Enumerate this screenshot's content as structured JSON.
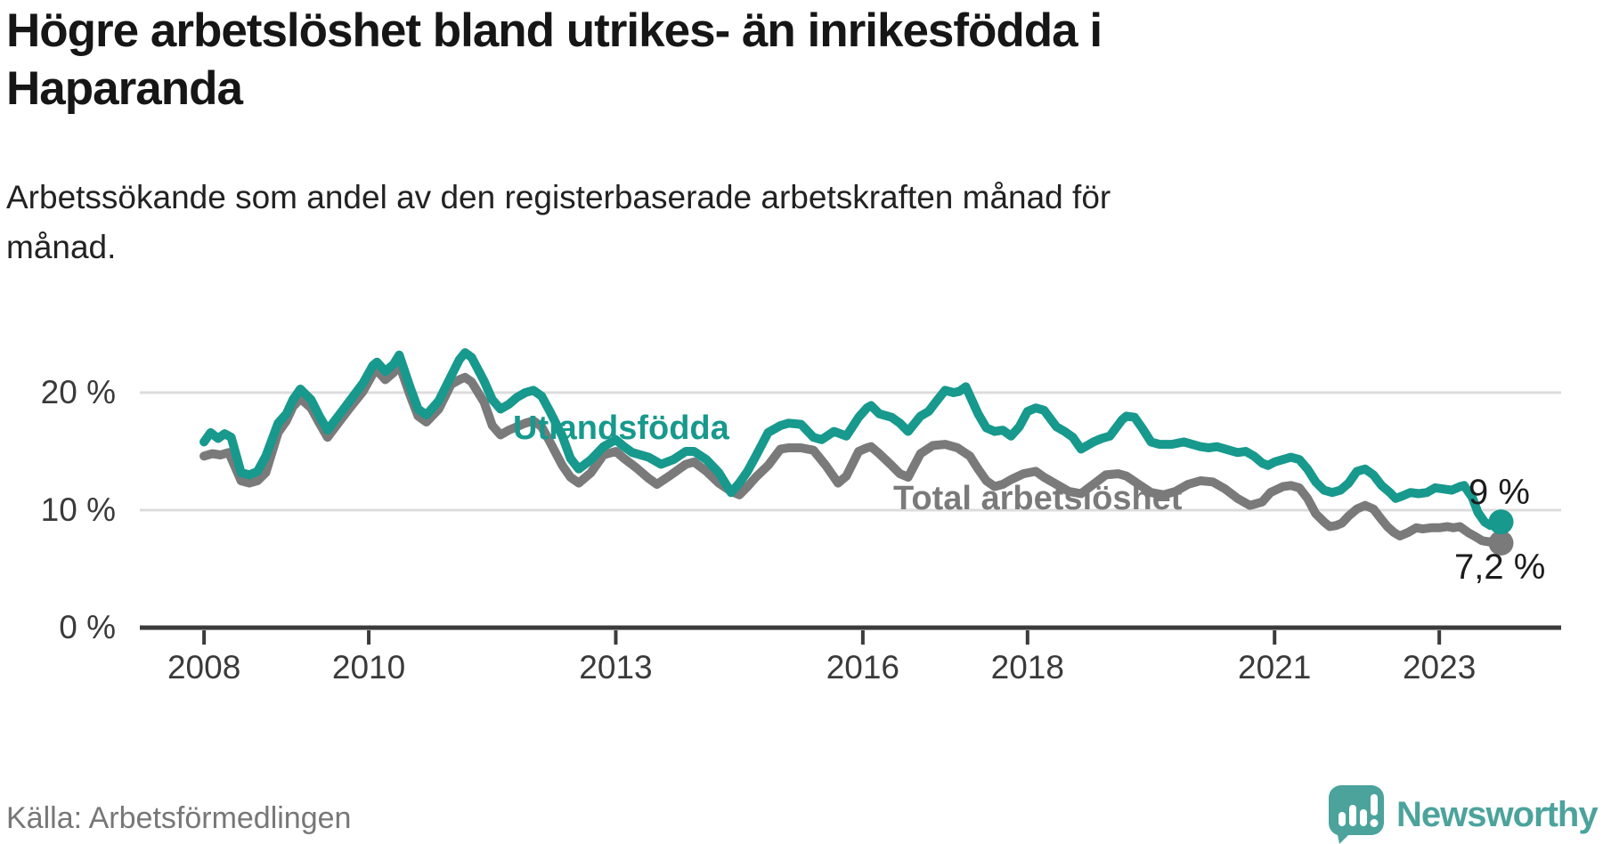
{
  "header": {
    "title": "Högre arbetslöshet bland utrikes- än inrikesfödda i\nHaparanda",
    "subtitle": "Arbetssökande som andel av den registerbaserade arbetskraften månad för\nmånad."
  },
  "footer": {
    "source": "Källa: Arbetsförmedlingen",
    "brand": "Newsworthy"
  },
  "colors": {
    "teal_line": "#17998d",
    "gray_line": "#7a7a7a",
    "logo_teal": "#4BA39C",
    "grid": "#dcdcdc",
    "axis": "#3b3b3b",
    "title_text": "#161616",
    "tick_text": "#3a3a3a",
    "source_text": "#777777"
  },
  "chart_data": {
    "type": "line",
    "title": "Högre arbetslöshet bland utrikes- än inrikesfödda i Haparanda",
    "xlabel": "",
    "ylabel": "Arbetssökande som andel av den registerbaserade arbetskraften",
    "unit": "%",
    "grid": "horizontal",
    "legend_position": "inline-labels",
    "xlim": [
      2007.22,
      2024.48
    ],
    "ylim": [
      0,
      28
    ],
    "x_ticks": [
      2008,
      2010,
      2013,
      2016,
      2018,
      2021,
      2023
    ],
    "x_tick_labels": [
      "2008",
      "2010",
      "2013",
      "2016",
      "2018",
      "2021",
      "2023"
    ],
    "y_ticks": [
      0,
      10,
      20
    ],
    "y_tick_labels": [
      "0 %",
      "10 %",
      "20 %"
    ],
    "series": [
      {
        "name": "Utlandsfödda",
        "color": "#17998d",
        "end_label": "9 %",
        "end_value": 9.0,
        "points": [
          [
            2008.0,
            15.8
          ],
          [
            2008.08,
            16.6
          ],
          [
            2008.17,
            16.1
          ],
          [
            2008.25,
            16.5
          ],
          [
            2008.33,
            16.2
          ],
          [
            2008.45,
            13.2
          ],
          [
            2008.55,
            13.0
          ],
          [
            2008.65,
            13.3
          ],
          [
            2008.75,
            14.6
          ],
          [
            2008.9,
            17.4
          ],
          [
            2009.0,
            18.2
          ],
          [
            2009.08,
            19.4
          ],
          [
            2009.17,
            20.3
          ],
          [
            2009.3,
            19.4
          ],
          [
            2009.4,
            18.0
          ],
          [
            2009.5,
            16.8
          ],
          [
            2009.63,
            18.0
          ],
          [
            2009.77,
            19.3
          ],
          [
            2009.93,
            20.8
          ],
          [
            2010.05,
            22.3
          ],
          [
            2010.1,
            22.6
          ],
          [
            2010.2,
            21.8
          ],
          [
            2010.3,
            22.4
          ],
          [
            2010.37,
            23.2
          ],
          [
            2010.5,
            20.5
          ],
          [
            2010.6,
            18.6
          ],
          [
            2010.7,
            18.1
          ],
          [
            2010.85,
            19.3
          ],
          [
            2011.0,
            21.4
          ],
          [
            2011.1,
            22.8
          ],
          [
            2011.17,
            23.4
          ],
          [
            2011.25,
            23.0
          ],
          [
            2011.4,
            21.0
          ],
          [
            2011.5,
            19.4
          ],
          [
            2011.6,
            18.6
          ],
          [
            2011.7,
            19.0
          ],
          [
            2011.8,
            19.6
          ],
          [
            2011.9,
            20.0
          ],
          [
            2012.0,
            20.2
          ],
          [
            2012.1,
            19.7
          ],
          [
            2012.2,
            18.4
          ],
          [
            2012.35,
            16.3
          ],
          [
            2012.45,
            14.4
          ],
          [
            2012.55,
            13.5
          ],
          [
            2012.7,
            14.3
          ],
          [
            2012.85,
            15.4
          ],
          [
            2013.0,
            16.0
          ],
          [
            2013.1,
            15.4
          ],
          [
            2013.2,
            14.9
          ],
          [
            2013.4,
            14.5
          ],
          [
            2013.55,
            13.9
          ],
          [
            2013.7,
            14.3
          ],
          [
            2013.85,
            15.0
          ],
          [
            2013.95,
            15.0
          ],
          [
            2014.1,
            14.3
          ],
          [
            2014.25,
            13.2
          ],
          [
            2014.4,
            11.5
          ],
          [
            2014.5,
            12.3
          ],
          [
            2014.6,
            13.3
          ],
          [
            2014.7,
            14.6
          ],
          [
            2014.85,
            16.6
          ],
          [
            2015.0,
            17.2
          ],
          [
            2015.1,
            17.4
          ],
          [
            2015.25,
            17.3
          ],
          [
            2015.4,
            16.2
          ],
          [
            2015.5,
            16.0
          ],
          [
            2015.65,
            16.7
          ],
          [
            2015.8,
            16.3
          ],
          [
            2015.95,
            17.9
          ],
          [
            2016.05,
            18.7
          ],
          [
            2016.1,
            18.9
          ],
          [
            2016.2,
            18.2
          ],
          [
            2016.35,
            17.9
          ],
          [
            2016.45,
            17.4
          ],
          [
            2016.55,
            16.7
          ],
          [
            2016.7,
            18.0
          ],
          [
            2016.8,
            18.4
          ],
          [
            2016.92,
            19.5
          ],
          [
            2017.0,
            20.2
          ],
          [
            2017.1,
            20.0
          ],
          [
            2017.17,
            20.1
          ],
          [
            2017.25,
            20.5
          ],
          [
            2017.4,
            18.2
          ],
          [
            2017.5,
            17.0
          ],
          [
            2017.6,
            16.7
          ],
          [
            2017.7,
            16.8
          ],
          [
            2017.8,
            16.3
          ],
          [
            2017.9,
            17.1
          ],
          [
            2018.0,
            18.4
          ],
          [
            2018.1,
            18.7
          ],
          [
            2018.2,
            18.5
          ],
          [
            2018.35,
            17.1
          ],
          [
            2018.45,
            16.7
          ],
          [
            2018.55,
            16.2
          ],
          [
            2018.65,
            15.2
          ],
          [
            2018.8,
            15.8
          ],
          [
            2018.9,
            16.1
          ],
          [
            2019.0,
            16.3
          ],
          [
            2019.15,
            17.7
          ],
          [
            2019.2,
            18.0
          ],
          [
            2019.3,
            17.9
          ],
          [
            2019.4,
            16.9
          ],
          [
            2019.5,
            15.8
          ],
          [
            2019.6,
            15.6
          ],
          [
            2019.75,
            15.6
          ],
          [
            2019.9,
            15.8
          ],
          [
            2020.0,
            15.6
          ],
          [
            2020.1,
            15.4
          ],
          [
            2020.2,
            15.3
          ],
          [
            2020.3,
            15.4
          ],
          [
            2020.45,
            15.1
          ],
          [
            2020.55,
            14.9
          ],
          [
            2020.65,
            15.0
          ],
          [
            2020.75,
            14.6
          ],
          [
            2020.85,
            14.0
          ],
          [
            2020.92,
            13.8
          ],
          [
            2021.0,
            14.1
          ],
          [
            2021.1,
            14.3
          ],
          [
            2021.2,
            14.5
          ],
          [
            2021.3,
            14.3
          ],
          [
            2021.4,
            13.5
          ],
          [
            2021.5,
            12.4
          ],
          [
            2021.6,
            11.7
          ],
          [
            2021.7,
            11.5
          ],
          [
            2021.8,
            11.7
          ],
          [
            2021.9,
            12.3
          ],
          [
            2022.0,
            13.3
          ],
          [
            2022.1,
            13.5
          ],
          [
            2022.2,
            13.0
          ],
          [
            2022.3,
            12.1
          ],
          [
            2022.4,
            11.5
          ],
          [
            2022.47,
            11.0
          ],
          [
            2022.55,
            11.2
          ],
          [
            2022.65,
            11.5
          ],
          [
            2022.75,
            11.4
          ],
          [
            2022.85,
            11.5
          ],
          [
            2022.95,
            11.9
          ],
          [
            2023.05,
            11.8
          ],
          [
            2023.15,
            11.7
          ],
          [
            2023.25,
            12.0
          ],
          [
            2023.3,
            12.1
          ],
          [
            2023.4,
            11.1
          ],
          [
            2023.47,
            9.8
          ],
          [
            2023.55,
            9.0
          ],
          [
            2023.62,
            8.7
          ],
          [
            2023.7,
            8.9
          ],
          [
            2023.75,
            9.0
          ]
        ]
      },
      {
        "name": "Total arbetslöshet",
        "color": "#7a7a7a",
        "end_label": "7,2 %",
        "end_value": 7.2,
        "points": [
          [
            2008.0,
            14.6
          ],
          [
            2008.1,
            14.8
          ],
          [
            2008.2,
            14.7
          ],
          [
            2008.3,
            14.9
          ],
          [
            2008.45,
            12.5
          ],
          [
            2008.55,
            12.3
          ],
          [
            2008.65,
            12.5
          ],
          [
            2008.75,
            13.2
          ],
          [
            2008.9,
            16.6
          ],
          [
            2009.0,
            17.6
          ],
          [
            2009.08,
            18.8
          ],
          [
            2009.17,
            19.5
          ],
          [
            2009.3,
            18.7
          ],
          [
            2009.4,
            17.4
          ],
          [
            2009.5,
            16.2
          ],
          [
            2009.63,
            17.4
          ],
          [
            2009.77,
            18.7
          ],
          [
            2009.93,
            20.1
          ],
          [
            2010.05,
            21.6
          ],
          [
            2010.1,
            21.9
          ],
          [
            2010.2,
            21.1
          ],
          [
            2010.3,
            21.7
          ],
          [
            2010.37,
            22.4
          ],
          [
            2010.5,
            19.8
          ],
          [
            2010.6,
            18.0
          ],
          [
            2010.7,
            17.5
          ],
          [
            2010.85,
            18.6
          ],
          [
            2011.0,
            20.7
          ],
          [
            2011.1,
            21.1
          ],
          [
            2011.17,
            21.3
          ],
          [
            2011.25,
            20.9
          ],
          [
            2011.4,
            19.2
          ],
          [
            2011.5,
            17.2
          ],
          [
            2011.6,
            16.4
          ],
          [
            2011.7,
            16.8
          ],
          [
            2011.8,
            17.1
          ],
          [
            2011.9,
            17.4
          ],
          [
            2012.0,
            17.6
          ],
          [
            2012.1,
            17.1
          ],
          [
            2012.2,
            15.8
          ],
          [
            2012.35,
            13.8
          ],
          [
            2012.45,
            12.8
          ],
          [
            2012.55,
            12.3
          ],
          [
            2012.7,
            13.2
          ],
          [
            2012.85,
            14.7
          ],
          [
            2013.0,
            15.0
          ],
          [
            2013.1,
            14.4
          ],
          [
            2013.25,
            13.6
          ],
          [
            2013.4,
            12.7
          ],
          [
            2013.5,
            12.2
          ],
          [
            2013.65,
            12.9
          ],
          [
            2013.85,
            13.9
          ],
          [
            2013.95,
            14.1
          ],
          [
            2014.1,
            13.3
          ],
          [
            2014.25,
            12.3
          ],
          [
            2014.4,
            11.6
          ],
          [
            2014.5,
            11.3
          ],
          [
            2014.6,
            12.0
          ],
          [
            2014.7,
            12.8
          ],
          [
            2014.85,
            13.8
          ],
          [
            2015.0,
            15.2
          ],
          [
            2015.1,
            15.3
          ],
          [
            2015.25,
            15.3
          ],
          [
            2015.4,
            15.1
          ],
          [
            2015.55,
            13.8
          ],
          [
            2015.7,
            12.3
          ],
          [
            2015.8,
            12.9
          ],
          [
            2015.95,
            15.0
          ],
          [
            2016.05,
            15.3
          ],
          [
            2016.1,
            15.4
          ],
          [
            2016.2,
            14.8
          ],
          [
            2016.35,
            13.8
          ],
          [
            2016.45,
            13.1
          ],
          [
            2016.55,
            12.8
          ],
          [
            2016.7,
            14.8
          ],
          [
            2016.85,
            15.5
          ],
          [
            2017.0,
            15.6
          ],
          [
            2017.15,
            15.3
          ],
          [
            2017.3,
            14.6
          ],
          [
            2017.4,
            13.5
          ],
          [
            2017.5,
            12.5
          ],
          [
            2017.6,
            12.0
          ],
          [
            2017.7,
            12.2
          ],
          [
            2017.8,
            12.6
          ],
          [
            2017.95,
            13.1
          ],
          [
            2018.1,
            13.3
          ],
          [
            2018.2,
            12.8
          ],
          [
            2018.35,
            12.2
          ],
          [
            2018.5,
            11.6
          ],
          [
            2018.65,
            11.4
          ],
          [
            2018.8,
            12.2
          ],
          [
            2018.95,
            13.0
          ],
          [
            2019.1,
            13.1
          ],
          [
            2019.2,
            12.9
          ],
          [
            2019.35,
            12.2
          ],
          [
            2019.5,
            11.5
          ],
          [
            2019.65,
            11.3
          ],
          [
            2019.8,
            11.6
          ],
          [
            2019.95,
            12.2
          ],
          [
            2020.1,
            12.5
          ],
          [
            2020.25,
            12.4
          ],
          [
            2020.4,
            11.8
          ],
          [
            2020.55,
            11.0
          ],
          [
            2020.7,
            10.4
          ],
          [
            2020.85,
            10.7
          ],
          [
            2020.95,
            11.5
          ],
          [
            2021.1,
            12.0
          ],
          [
            2021.2,
            12.1
          ],
          [
            2021.3,
            11.9
          ],
          [
            2021.4,
            11.0
          ],
          [
            2021.5,
            9.7
          ],
          [
            2021.6,
            9.0
          ],
          [
            2021.67,
            8.6
          ],
          [
            2021.75,
            8.7
          ],
          [
            2021.82,
            8.9
          ],
          [
            2021.9,
            9.5
          ],
          [
            2022.0,
            10.1
          ],
          [
            2022.1,
            10.4
          ],
          [
            2022.2,
            10.1
          ],
          [
            2022.3,
            9.2
          ],
          [
            2022.37,
            8.6
          ],
          [
            2022.45,
            8.1
          ],
          [
            2022.52,
            7.8
          ],
          [
            2022.62,
            8.1
          ],
          [
            2022.72,
            8.5
          ],
          [
            2022.8,
            8.4
          ],
          [
            2022.9,
            8.5
          ],
          [
            2023.0,
            8.5
          ],
          [
            2023.1,
            8.6
          ],
          [
            2023.17,
            8.5
          ],
          [
            2023.25,
            8.6
          ],
          [
            2023.35,
            8.1
          ],
          [
            2023.45,
            7.7
          ],
          [
            2023.52,
            7.4
          ],
          [
            2023.6,
            7.3
          ],
          [
            2023.68,
            7.4
          ],
          [
            2023.75,
            7.2
          ]
        ]
      }
    ]
  }
}
